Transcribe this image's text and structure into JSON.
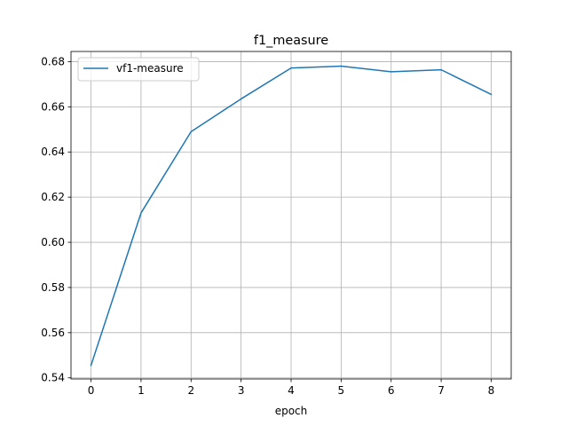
{
  "chart_data": {
    "type": "line",
    "title": "f1_measure",
    "xlabel": "epoch",
    "ylabel": "",
    "x": [
      0,
      1,
      2,
      3,
      4,
      5,
      6,
      7,
      8
    ],
    "xticks": [
      "0",
      "1",
      "2",
      "3",
      "4",
      "5",
      "6",
      "7",
      "8"
    ],
    "yticks": [
      "0.54",
      "0.56",
      "0.58",
      "0.60",
      "0.62",
      "0.64",
      "0.66",
      "0.68"
    ],
    "xlim": [
      -0.4,
      8.4
    ],
    "ylim": [
      0.5395,
      0.6845
    ],
    "grid": true,
    "legend_position": "top-left",
    "series": [
      {
        "name": "vf1-measure",
        "color": "#1f77b4",
        "values": [
          0.5455,
          0.613,
          0.649,
          0.6635,
          0.6772,
          0.678,
          0.6755,
          0.6764,
          0.6655
        ]
      }
    ]
  }
}
